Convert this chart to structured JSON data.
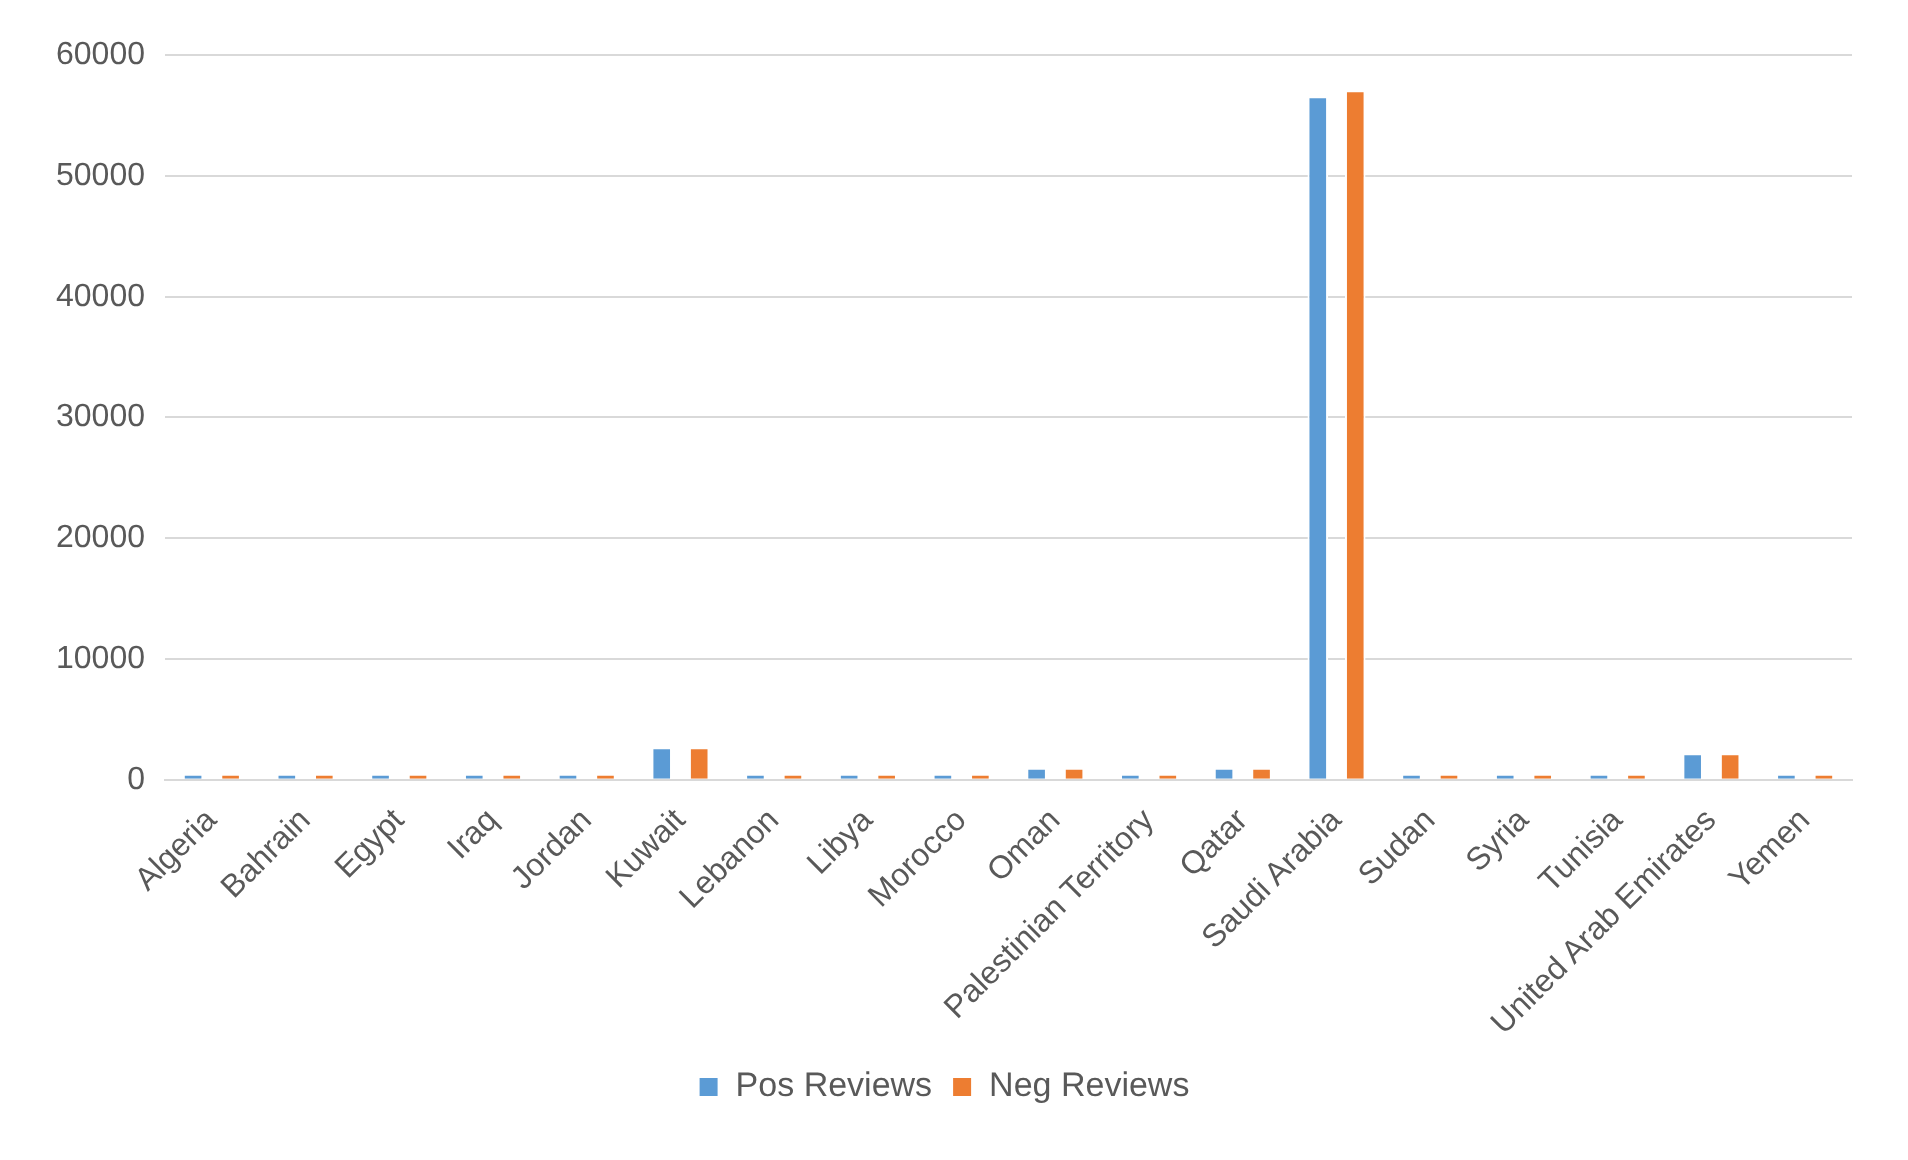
{
  "chart_data": {
    "type": "bar",
    "categories": [
      "Algeria",
      "Bahrain",
      "Egypt",
      "Iraq",
      "Jordan",
      "Kuwait",
      "Lebanon",
      "Libya",
      "Morocco",
      "Oman",
      "Palestinian Territory",
      "Qatar",
      "Saudi Arabia",
      "Sudan",
      "Syria",
      "Tunisia",
      "United Arab Emirates",
      "Yemen"
    ],
    "series": [
      {
        "name": "Pos Reviews",
        "color": "#5b9bd5",
        "values": [
          500,
          500,
          500,
          500,
          500,
          2700,
          500,
          500,
          500,
          1000,
          500,
          1000,
          56600,
          500,
          500,
          500,
          2200,
          500
        ]
      },
      {
        "name": "Neg Reviews",
        "color": "#ed7d31",
        "values": [
          500,
          500,
          500,
          500,
          500,
          2700,
          500,
          500,
          500,
          1000,
          500,
          1000,
          57100,
          500,
          500,
          500,
          2200,
          500
        ]
      }
    ],
    "ylim": [
      0,
      60000
    ],
    "yticks": [
      0,
      10000,
      20000,
      30000,
      40000,
      50000,
      60000
    ],
    "grid": "y",
    "legend": "bottom"
  }
}
